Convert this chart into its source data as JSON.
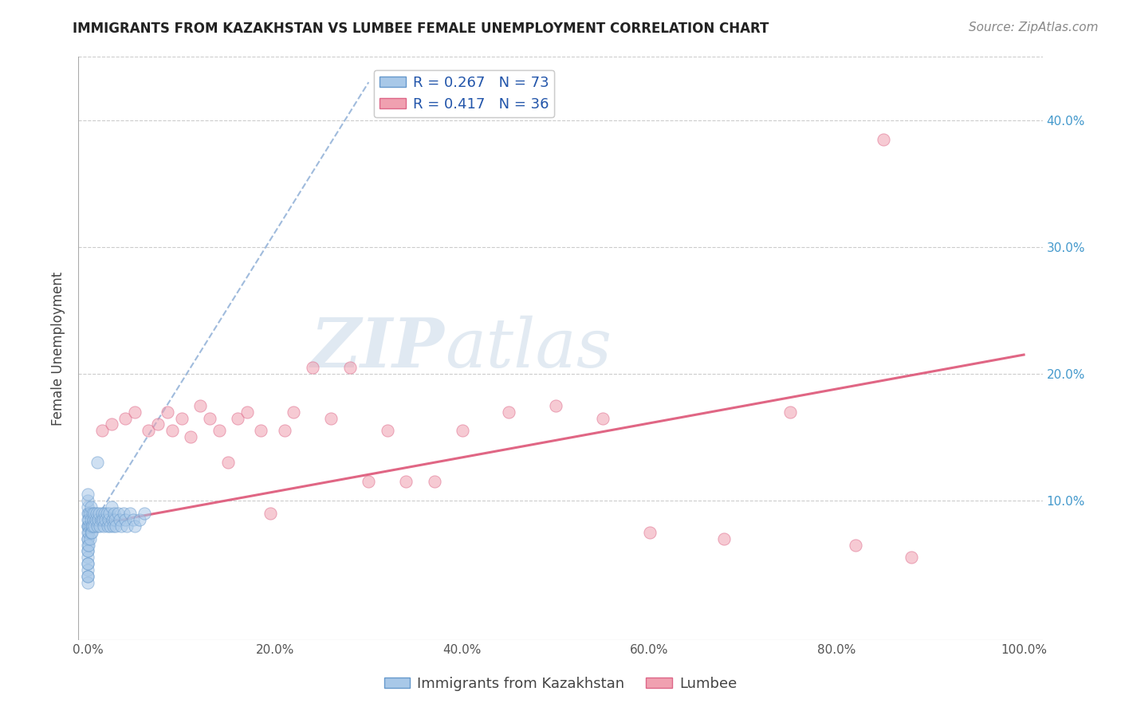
{
  "title": "IMMIGRANTS FROM KAZAKHSTAN VS LUMBEE FEMALE UNEMPLOYMENT CORRELATION CHART",
  "source": "Source: ZipAtlas.com",
  "ylabel": "Female Unemployment",
  "x_tick_labels": [
    "0.0%",
    "20.0%",
    "40.0%",
    "60.0%",
    "80.0%",
    "100.0%"
  ],
  "x_tick_values": [
    0,
    20,
    40,
    60,
    80,
    100
  ],
  "y_tick_labels": [
    "10.0%",
    "20.0%",
    "30.0%",
    "40.0%"
  ],
  "y_tick_values": [
    10,
    20,
    30,
    40
  ],
  "xlim": [
    -1,
    102
  ],
  "ylim": [
    -1,
    45
  ],
  "legend_series": [
    {
      "label": "R = 0.267   N = 73"
    },
    {
      "label": "R = 0.417   N = 36"
    }
  ],
  "legend_bottom": [
    {
      "label": "Immigrants from Kazakhstan"
    },
    {
      "label": "Lumbee"
    }
  ],
  "kazakhstan_x": [
    0.0,
    0.0,
    0.0,
    0.0,
    0.0,
    0.0,
    0.0,
    0.0,
    0.0,
    0.0,
    0.0,
    0.0,
    0.0,
    0.0,
    0.0,
    0.0,
    0.0,
    0.0,
    0.0,
    0.0,
    0.1,
    0.1,
    0.1,
    0.1,
    0.1,
    0.2,
    0.2,
    0.2,
    0.3,
    0.3,
    0.3,
    0.4,
    0.4,
    0.5,
    0.5,
    0.6,
    0.7,
    0.7,
    0.8,
    0.9,
    1.0,
    1.0,
    1.1,
    1.2,
    1.3,
    1.4,
    1.5,
    1.6,
    1.7,
    1.8,
    1.9,
    2.0,
    2.1,
    2.2,
    2.3,
    2.4,
    2.5,
    2.6,
    2.7,
    2.8,
    2.9,
    3.0,
    3.2,
    3.4,
    3.6,
    3.8,
    4.0,
    4.2,
    4.5,
    4.8,
    5.0,
    5.5,
    6.0
  ],
  "kazakhstan_y": [
    8.0,
    7.5,
    7.0,
    6.5,
    6.0,
    5.5,
    5.0,
    4.5,
    4.0,
    3.5,
    9.0,
    8.5,
    9.5,
    10.0,
    10.5,
    8.0,
    7.0,
    6.0,
    5.0,
    4.0,
    8.0,
    9.0,
    7.5,
    8.5,
    6.5,
    8.0,
    9.0,
    7.0,
    8.5,
    7.5,
    9.5,
    8.0,
    7.5,
    9.0,
    8.0,
    8.5,
    8.0,
    9.0,
    8.5,
    9.0,
    13.0,
    8.0,
    8.5,
    9.0,
    8.0,
    8.5,
    9.0,
    8.5,
    8.0,
    9.0,
    8.5,
    9.0,
    8.0,
    8.5,
    9.0,
    8.0,
    9.5,
    8.5,
    8.0,
    9.0,
    8.5,
    8.0,
    9.0,
    8.5,
    8.0,
    9.0,
    8.5,
    8.0,
    9.0,
    8.5,
    8.0,
    8.5,
    9.0
  ],
  "lumbee_x": [
    1.5,
    2.5,
    4.0,
    5.0,
    6.5,
    7.5,
    8.5,
    9.0,
    10.0,
    11.0,
    12.0,
    13.0,
    14.0,
    15.0,
    16.0,
    17.0,
    18.5,
    19.5,
    21.0,
    22.0,
    24.0,
    26.0,
    28.0,
    30.0,
    32.0,
    34.0,
    37.0,
    40.0,
    45.0,
    50.0,
    55.0,
    60.0,
    68.0,
    75.0,
    82.0,
    88.0
  ],
  "lumbee_y": [
    15.5,
    16.0,
    16.5,
    17.0,
    15.5,
    16.0,
    17.0,
    15.5,
    16.5,
    15.0,
    17.5,
    16.5,
    15.5,
    13.0,
    16.5,
    17.0,
    15.5,
    9.0,
    15.5,
    17.0,
    20.5,
    16.5,
    20.5,
    11.5,
    15.5,
    11.5,
    11.5,
    15.5,
    17.0,
    17.5,
    16.5,
    7.5,
    7.0,
    17.0,
    6.5,
    5.5
  ],
  "lumbee_outlier_x": [
    85.0
  ],
  "lumbee_outlier_y": [
    38.5
  ],
  "kazakhstan_trend_x": [
    0,
    30
  ],
  "kazakhstan_trend_y": [
    7.5,
    43
  ],
  "lumbee_trend_x": [
    0,
    100
  ],
  "lumbee_trend_y": [
    8.0,
    21.5
  ],
  "background_color": "#ffffff",
  "grid_color": "#cccccc",
  "title_color": "#222222",
  "ylabel_color": "#444444",
  "watermark_zip": "ZIP",
  "watermark_atlas": "atlas",
  "scatter_alpha": 0.55,
  "scatter_size": 120,
  "kazakhstan_scatter_color": "#a8c8e8",
  "kazakhstan_scatter_edge": "#6699cc",
  "lumbee_scatter_color": "#f0a0b0",
  "lumbee_scatter_edge": "#dd6688",
  "kazakhstan_line_color": "#88aad4",
  "lumbee_line_color": "#dd5577",
  "legend_kaz_color": "#a8c8e8",
  "legend_kaz_edge": "#6699cc",
  "legend_lum_color": "#f0a0b0",
  "legend_lum_edge": "#dd6688",
  "right_tick_color": "#4499cc",
  "title_fontsize": 12,
  "source_fontsize": 11,
  "axis_tick_fontsize": 11,
  "ylabel_fontsize": 12,
  "legend_fontsize": 13
}
